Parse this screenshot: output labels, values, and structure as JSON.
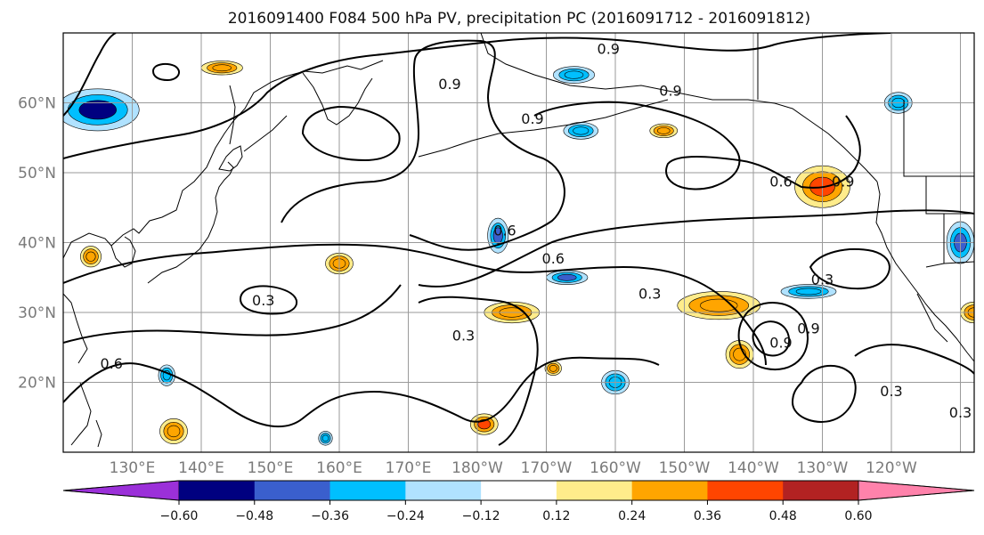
{
  "title": "2016091400 F084 500 hPa PV, precipitation PC (2016091712 - 2016091812)",
  "lat_ticks": [
    "60°N",
    "50°N",
    "40°N",
    "30°N",
    "20°N"
  ],
  "lon_ticks": [
    "130°E",
    "140°E",
    "150°E",
    "160°E",
    "170°E",
    "180°W",
    "170°W",
    "160°W",
    "150°W",
    "140°W",
    "130°W",
    "120°W"
  ],
  "extent": {
    "lon_min": 120,
    "lon_max": 252,
    "lat_min": 10,
    "lat_max": 70
  },
  "colorbar": {
    "colors": [
      "#9b30d9",
      "#000080",
      "#3a5fcd",
      "#00bfff",
      "#b0e2ff",
      "#ffffff",
      "#ffec8b",
      "#ffa500",
      "#ff4500",
      "#b22222",
      "#ff82ab"
    ],
    "tick_labels": [
      "−0.60",
      "−0.48",
      "−0.36",
      "−0.24",
      "−0.12",
      "0.12",
      "0.24",
      "0.36",
      "0.48",
      "0.60"
    ],
    "levels": [
      -0.6,
      -0.48,
      -0.36,
      -0.24,
      -0.12,
      0.12,
      0.24,
      0.36,
      0.48,
      0.6
    ]
  },
  "contour_labels": [
    {
      "text": "0.9",
      "lon": 176,
      "lat": 62
    },
    {
      "text": "0.9",
      "lon": 188,
      "lat": 57
    },
    {
      "text": "0.9",
      "lon": 208,
      "lat": 61
    },
    {
      "text": "0.9",
      "lon": 199,
      "lat": 67
    },
    {
      "text": "0.6",
      "lon": 184,
      "lat": 41
    },
    {
      "text": "0.6",
      "lon": 191,
      "lat": 37
    },
    {
      "text": "0.6",
      "lon": 224,
      "lat": 48
    },
    {
      "text": "0.9",
      "lon": 233,
      "lat": 48
    },
    {
      "text": "0.3",
      "lon": 149,
      "lat": 31
    },
    {
      "text": "0.3",
      "lon": 178,
      "lat": 26
    },
    {
      "text": "0.3",
      "lon": 205,
      "lat": 32
    },
    {
      "text": "0.9",
      "lon": 224,
      "lat": 25
    },
    {
      "text": "0.3",
      "lon": 230,
      "lat": 34
    },
    {
      "text": "0.3",
      "lon": 240,
      "lat": 18
    },
    {
      "text": "0.3",
      "lon": 250,
      "lat": 15
    },
    {
      "text": "0.6",
      "lon": 127,
      "lat": 22
    },
    {
      "text": "0.9",
      "lon": 228,
      "lat": 27
    }
  ],
  "precip_blobs": [
    {
      "lon": 125,
      "lat": 59,
      "rx": 6,
      "ry": 3,
      "v": -0.5
    },
    {
      "lon": 183,
      "lat": 41,
      "rx": 1.5,
      "ry": 2.5,
      "v": -0.4
    },
    {
      "lon": 230,
      "lat": 48,
      "rx": 4,
      "ry": 3,
      "v": 0.42
    },
    {
      "lon": 215,
      "lat": 31,
      "rx": 6,
      "ry": 2,
      "v": 0.3
    },
    {
      "lon": 193,
      "lat": 35,
      "rx": 3,
      "ry": 1,
      "v": -0.4
    },
    {
      "lon": 195,
      "lat": 56,
      "rx": 2.5,
      "ry": 1.2,
      "v": -0.35
    },
    {
      "lon": 250,
      "lat": 40,
      "rx": 2,
      "ry": 3,
      "v": -0.45
    },
    {
      "lon": 181,
      "lat": 14,
      "rx": 2,
      "ry": 1.5,
      "v": 0.4
    },
    {
      "lon": 135,
      "lat": 21,
      "rx": 1.2,
      "ry": 1.5,
      "v": -0.35
    },
    {
      "lon": 200,
      "lat": 20,
      "rx": 2,
      "ry": 1.7,
      "v": -0.35
    },
    {
      "lon": 218,
      "lat": 24,
      "rx": 2,
      "ry": 2,
      "v": 0.3
    },
    {
      "lon": 241,
      "lat": 60,
      "rx": 2,
      "ry": 1.5,
      "v": -0.3
    },
    {
      "lon": 143,
      "lat": 65,
      "rx": 3,
      "ry": 1,
      "v": 0.25
    },
    {
      "lon": 194,
      "lat": 64,
      "rx": 3,
      "ry": 1.2,
      "v": -0.3
    },
    {
      "lon": 185,
      "lat": 30,
      "rx": 4,
      "ry": 1.5,
      "v": 0.3
    },
    {
      "lon": 228,
      "lat": 33,
      "rx": 4,
      "ry": 1,
      "v": -0.3
    },
    {
      "lon": 160,
      "lat": 37,
      "rx": 2,
      "ry": 1.5,
      "v": 0.25
    },
    {
      "lon": 207,
      "lat": 56,
      "rx": 2,
      "ry": 1,
      "v": 0.25
    },
    {
      "lon": 124,
      "lat": 38,
      "rx": 1.5,
      "ry": 1.5,
      "v": 0.28
    },
    {
      "lon": 136,
      "lat": 13,
      "rx": 2,
      "ry": 1.8,
      "v": 0.28
    },
    {
      "lon": 252,
      "lat": 30,
      "rx": 2,
      "ry": 1.5,
      "v": 0.28
    },
    {
      "lon": 158,
      "lat": 12,
      "rx": 1,
      "ry": 1,
      "v": -0.3
    },
    {
      "lon": 191,
      "lat": 22,
      "rx": 1.2,
      "ry": 1,
      "v": 0.3
    }
  ]
}
